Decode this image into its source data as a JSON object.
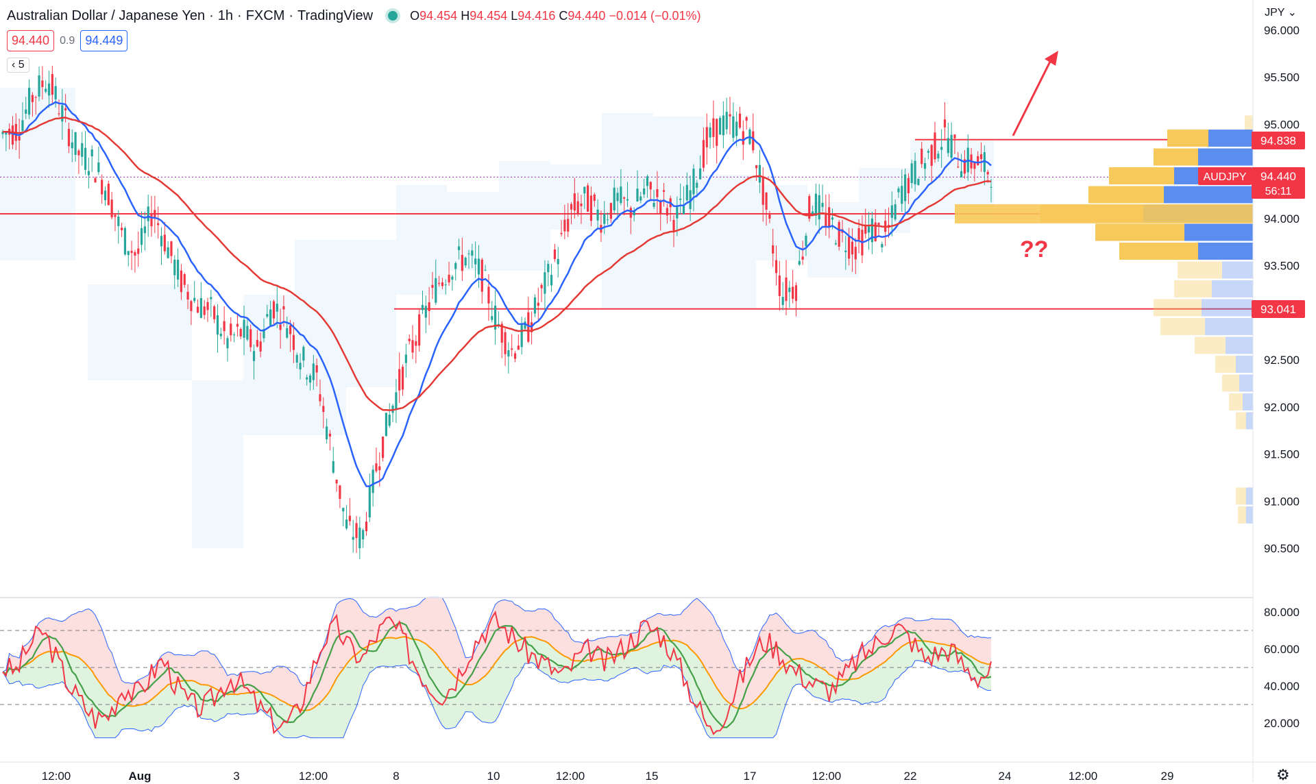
{
  "header": {
    "symbol": "Australian Dollar / Japanese Yen",
    "interval": "1h",
    "broker": "FXCM",
    "platform": "TradingView",
    "ohlc": {
      "o_label": "O",
      "o": "94.454",
      "h_label": "H",
      "h": "94.454",
      "l_label": "L",
      "l": "94.416",
      "c_label": "C",
      "c": "94.440",
      "change": "−0.014 (−0.01%)"
    }
  },
  "quote": {
    "sell": "94.440",
    "spread": "0.9",
    "buy": "94.449"
  },
  "indicator_toggle": "5",
  "currency": "JPY",
  "price_tags": {
    "resistance": "94.838",
    "symbol": "AUDJPY",
    "price": "94.440",
    "countdown": "56:11",
    "support": "93.041"
  },
  "annotation": "??",
  "colors": {
    "up": "#26a69a",
    "down": "#f23645",
    "ema_blue": "#2962ff",
    "ema_red": "#e53935",
    "level": "#f23645",
    "vp_up": "#5b8def",
    "vp_down": "#f7c85a",
    "rsi": "#f23645",
    "rsi_ma": "#43a047",
    "bb_mid": "#ff9800",
    "bb_band": "#2962ff"
  },
  "chart_data": [
    {
      "type": "candlestick",
      "title": "Australian Dollar / Japanese Yen, 1h, FXCM",
      "ylim": [
        90.3,
        96.2
      ],
      "y_ticks": [
        "96.000",
        "95.500",
        "95.000",
        "94.500",
        "94.000",
        "93.500",
        "93.000",
        "92.500",
        "92.000",
        "91.500",
        "91.000",
        "90.500"
      ],
      "x_ticks": [
        "12:00",
        "Aug",
        "3",
        "12:00",
        "8",
        "10",
        "12:00",
        "15",
        "17",
        "12:00",
        "22",
        "24",
        "12:00",
        "29"
      ],
      "close_path": [
        94.9,
        94.95,
        95.3,
        95.5,
        95.1,
        94.7,
        94.6,
        94.3,
        93.8,
        93.6,
        94.1,
        93.7,
        93.3,
        93.1,
        93.0,
        92.7,
        92.8,
        92.6,
        93.1,
        92.9,
        92.5,
        92.3,
        91.5,
        90.7,
        90.6,
        91.4,
        92.0,
        92.5,
        92.9,
        93.3,
        93.5,
        93.6,
        93.4,
        92.9,
        92.6,
        92.8,
        93.2,
        93.6,
        94.1,
        94.2,
        94.0,
        94.2,
        94.1,
        94.3,
        94.2,
        94.0,
        94.3,
        94.8,
        95.0,
        95.0,
        94.9,
        94.1,
        93.2,
        93.3,
        94.2,
        94.0,
        93.8,
        93.7,
        93.9,
        93.8,
        94.3,
        94.5,
        94.7,
        94.9,
        94.6,
        94.6,
        94.5
      ],
      "support_level": 93.041,
      "resistance_level": 94.838,
      "mid_level": 94.05,
      "current_price": 94.44,
      "volume_profile": [
        {
          "price": 95.0,
          "buy": 12,
          "sell": 0
        },
        {
          "price": 94.85,
          "buy": 60,
          "sell": 65
        },
        {
          "price": 94.65,
          "buy": 65,
          "sell": 80
        },
        {
          "price": 94.45,
          "buy": 95,
          "sell": 115
        },
        {
          "price": 94.25,
          "buy": 110,
          "sell": 130
        },
        {
          "price": 94.05,
          "buy": 150,
          "sell": 160
        },
        {
          "price": 93.85,
          "buy": 130,
          "sell": 100
        },
        {
          "price": 93.65,
          "buy": 115,
          "sell": 80
        },
        {
          "price": 93.45,
          "buy": 65,
          "sell": 45
        },
        {
          "price": 93.25,
          "buy": 55,
          "sell": 60
        },
        {
          "price": 93.05,
          "buy": 70,
          "sell": 75
        },
        {
          "price": 92.85,
          "buy": 65,
          "sell": 70
        },
        {
          "price": 92.65,
          "buy": 45,
          "sell": 40
        },
        {
          "price": 92.45,
          "buy": 30,
          "sell": 25
        },
        {
          "price": 92.25,
          "buy": 25,
          "sell": 20
        },
        {
          "price": 92.05,
          "buy": 20,
          "sell": 15
        },
        {
          "price": 91.85,
          "buy": 15,
          "sell": 10
        },
        {
          "price": 91.05,
          "buy": 15,
          "sell": 10
        },
        {
          "price": 90.85,
          "buy": 12,
          "sell": 10
        }
      ]
    },
    {
      "type": "line",
      "title": "RSI",
      "ylim": [
        10,
        90
      ],
      "y_ticks": [
        "80.000",
        "60.000",
        "40.000",
        "20.000"
      ],
      "levels": [
        70,
        50,
        30
      ],
      "rsi_path": [
        50,
        48,
        62,
        70,
        55,
        40,
        30,
        22,
        25,
        40,
        35,
        45,
        55,
        40,
        30,
        28,
        35,
        45,
        40,
        30,
        22,
        18,
        25,
        45,
        65,
        72,
        60,
        55,
        68,
        75,
        65,
        50,
        40,
        35,
        45,
        60,
        70,
        75,
        68,
        60,
        55,
        50,
        45,
        55,
        60,
        52,
        58,
        65,
        72,
        70,
        60,
        45,
        30,
        15,
        25,
        40,
        55,
        65,
        60,
        50,
        45,
        40,
        38,
        45,
        55,
        60,
        68,
        72,
        65,
        55,
        58,
        60,
        50,
        45,
        48
      ]
    }
  ]
}
